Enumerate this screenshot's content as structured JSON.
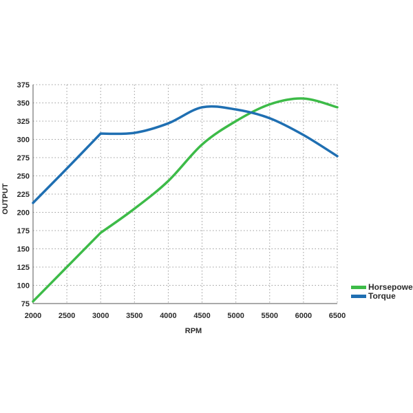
{
  "chart_data": {
    "type": "line",
    "title": "",
    "xlabel": "RPM",
    "ylabel": "OUTPUT",
    "xlim": [
      2000,
      6500
    ],
    "ylim": [
      75,
      375
    ],
    "x_ticks": [
      2000,
      2500,
      3000,
      3500,
      4000,
      4500,
      5000,
      5500,
      6000,
      6500
    ],
    "y_ticks": [
      75,
      100,
      125,
      150,
      175,
      200,
      225,
      250,
      275,
      300,
      325,
      350,
      375
    ],
    "grid": true,
    "legend_position": "right",
    "series": [
      {
        "name": "Horsepower",
        "color": "#3dbb48",
        "x": [
          2000,
          2500,
          3000,
          3500,
          4000,
          4500,
          5000,
          5500,
          6000,
          6500
        ],
        "y": [
          78,
          125,
          172,
          205,
          243,
          293,
          325,
          348,
          356,
          344
        ]
      },
      {
        "name": "Torque",
        "color": "#1f6fb2",
        "x": [
          2000,
          2500,
          3000,
          3500,
          4000,
          4500,
          5000,
          5500,
          6000,
          6500
        ],
        "y": [
          213,
          260,
          308,
          309,
          322,
          344,
          341,
          329,
          306,
          277
        ]
      }
    ]
  }
}
